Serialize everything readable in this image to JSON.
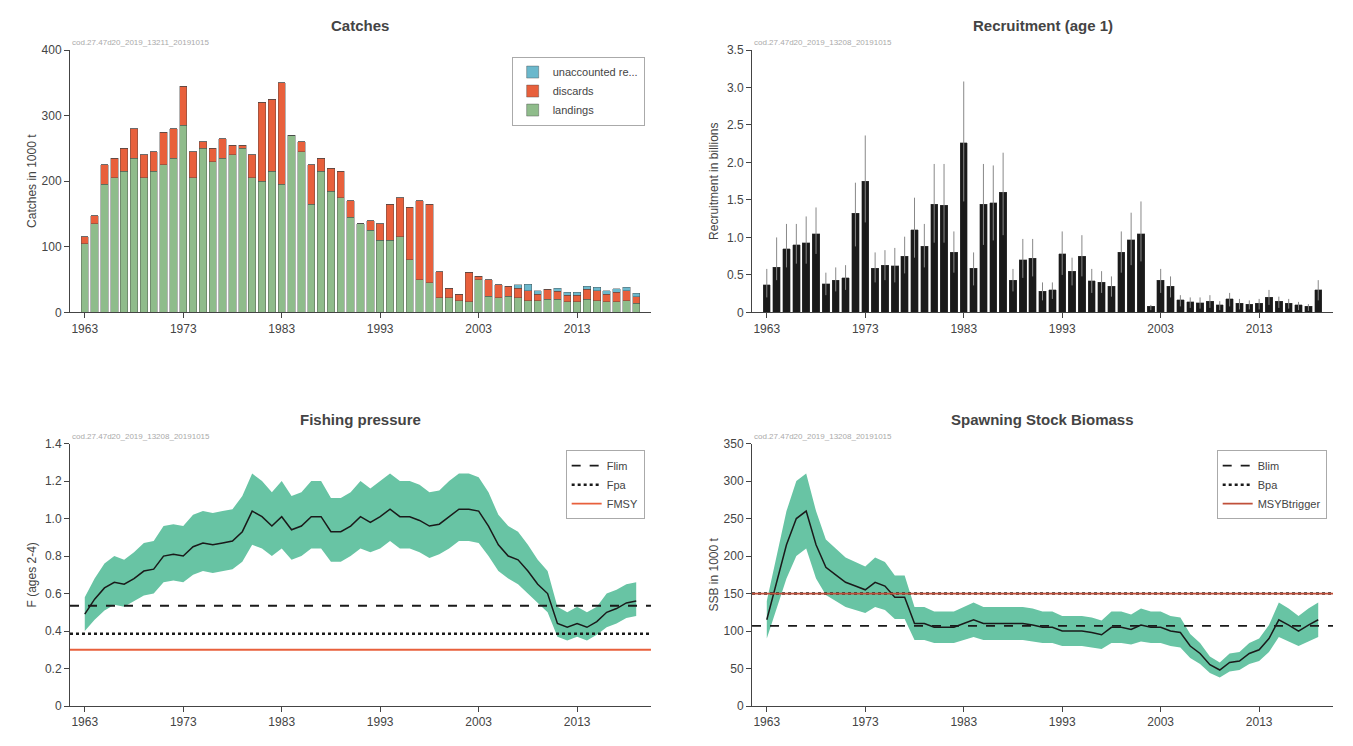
{
  "chart_data": [
    {
      "type": "bar",
      "title": "Catches",
      "subtitle": "cod.27.47d20_2019_13211_20191015",
      "ylabel": "Catches in 1000 t",
      "stacked": true,
      "grid": false,
      "legend": "upper right",
      "x": [
        1963,
        1964,
        1965,
        1966,
        1967,
        1968,
        1969,
        1970,
        1971,
        1972,
        1973,
        1974,
        1975,
        1976,
        1977,
        1978,
        1979,
        1980,
        1981,
        1982,
        1983,
        1984,
        1985,
        1986,
        1987,
        1988,
        1989,
        1990,
        1991,
        1992,
        1993,
        1994,
        1995,
        1996,
        1997,
        1998,
        1999,
        2000,
        2001,
        2002,
        2003,
        2004,
        2005,
        2006,
        2007,
        2008,
        2009,
        2010,
        2011,
        2012,
        2013,
        2014,
        2015,
        2016,
        2017,
        2018,
        2019
      ],
      "xlim": [
        1961.5,
        2020.5
      ],
      "xticks": [
        1963,
        1973,
        1983,
        1993,
        2003,
        2013
      ],
      "ylim": [
        0,
        400
      ],
      "yticks": [
        0,
        100,
        200,
        300,
        400
      ],
      "series": [
        {
          "name": "landings",
          "color": "#8fbc8b",
          "values": [
            105,
            135,
            195,
            205,
            215,
            235,
            205,
            215,
            225,
            235,
            285,
            205,
            250,
            230,
            235,
            240,
            250,
            205,
            200,
            215,
            195,
            270,
            245,
            165,
            215,
            185,
            175,
            145,
            135,
            125,
            110,
            110,
            115,
            80,
            50,
            45,
            22,
            22,
            18,
            16,
            50,
            25,
            22,
            25,
            22,
            18,
            18,
            20,
            20,
            16,
            16,
            20,
            18,
            16,
            16,
            18,
            14
          ]
        },
        {
          "name": "discards",
          "color": "#e8603c",
          "values": [
            10,
            12,
            30,
            30,
            35,
            45,
            35,
            30,
            50,
            45,
            60,
            40,
            10,
            20,
            30,
            15,
            5,
            35,
            120,
            110,
            155,
            0,
            15,
            60,
            20,
            35,
            40,
            25,
            0,
            15,
            25,
            55,
            60,
            80,
            120,
            120,
            40,
            15,
            10,
            45,
            5,
            25,
            20,
            15,
            15,
            15,
            10,
            15,
            12,
            10,
            10,
            15,
            15,
            12,
            15,
            15,
            10
          ]
        },
        {
          "name": "unaccounted re...",
          "color": "#6bb8cc",
          "values": [
            0,
            0,
            0,
            0,
            0,
            0,
            0,
            0,
            0,
            0,
            0,
            0,
            0,
            0,
            0,
            0,
            0,
            0,
            0,
            0,
            0,
            0,
            0,
            0,
            0,
            0,
            0,
            0,
            0,
            0,
            0,
            0,
            0,
            0,
            0,
            0,
            0,
            0,
            0,
            0,
            0,
            0,
            0,
            0,
            5,
            10,
            5,
            0,
            5,
            5,
            5,
            5,
            5,
            5,
            5,
            5,
            5
          ]
        }
      ]
    },
    {
      "type": "bar",
      "title": "Recruitment (age 1)",
      "subtitle": "cod.27.47d20_2019_13208_20191015",
      "ylabel": "Recruitment in billions",
      "grid": false,
      "x": [
        1963,
        1964,
        1965,
        1966,
        1967,
        1968,
        1969,
        1970,
        1971,
        1972,
        1973,
        1974,
        1975,
        1976,
        1977,
        1978,
        1979,
        1980,
        1981,
        1982,
        1983,
        1984,
        1985,
        1986,
        1987,
        1988,
        1989,
        1990,
        1991,
        1992,
        1993,
        1994,
        1995,
        1996,
        1997,
        1998,
        1999,
        2000,
        2001,
        2002,
        2003,
        2004,
        2005,
        2006,
        2007,
        2008,
        2009,
        2010,
        2011,
        2012,
        2013,
        2014,
        2015,
        2016,
        2017,
        2018,
        2019
      ],
      "xlim": [
        1961.5,
        2020.5
      ],
      "xticks": [
        1963,
        1973,
        1983,
        1993,
        2003,
        2013
      ],
      "ylim": [
        0,
        3.5
      ],
      "yticks": [
        0,
        0.5,
        {
          "value": 1,
          "label": "1.0"
        },
        1.5,
        {
          "value": 2,
          "label": "2.0"
        },
        2.5,
        {
          "value": 3,
          "label": "3.0"
        },
        3.5
      ],
      "series": [
        {
          "color": "#1a1a1a",
          "values": [
            0.37,
            0.6,
            0.85,
            0.9,
            0.93,
            1.05,
            0.38,
            0.43,
            0.46,
            1.32,
            1.75,
            0.59,
            0.63,
            0.62,
            0.75,
            1.1,
            0.88,
            1.44,
            1.43,
            0.8,
            2.26,
            0.59,
            1.44,
            1.46,
            1.6,
            0.43,
            0.7,
            0.72,
            0.28,
            0.3,
            0.78,
            0.55,
            0.75,
            0.42,
            0.4,
            0.35,
            0.8,
            0.97,
            1.05,
            0.08,
            0.43,
            0.35,
            0.17,
            0.14,
            0.13,
            0.15,
            0.1,
            0.18,
            0.12,
            0.11,
            0.12,
            0.2,
            0.15,
            0.12,
            0.1,
            0.08,
            0.3
          ],
          "low": [
            0.2,
            0.43,
            0.6,
            0.65,
            0.65,
            0.78,
            0.23,
            0.28,
            0.3,
            0.88,
            1.2,
            0.4,
            0.43,
            0.4,
            0.52,
            0.73,
            0.6,
            0.93,
            0.93,
            0.53,
            1.48,
            0.36,
            0.9,
            0.96,
            1.03,
            0.28,
            0.46,
            0.48,
            0.16,
            0.18,
            0.5,
            0.36,
            0.48,
            0.26,
            0.26,
            0.21,
            0.53,
            0.63,
            0.68,
            0.03,
            0.26,
            0.2,
            0.08,
            0.06,
            0.05,
            0.06,
            0.03,
            0.08,
            0.04,
            0.04,
            0.04,
            0.1,
            0.06,
            0.05,
            0.03,
            0.02,
            0.16
          ],
          "high": [
            0.58,
            1.0,
            1.18,
            1.18,
            1.28,
            1.4,
            0.53,
            0.6,
            0.63,
            1.73,
            2.36,
            0.8,
            0.83,
            0.86,
            1.01,
            1.53,
            1.18,
            1.98,
            1.98,
            1.08,
            3.08,
            0.8,
            1.98,
            1.96,
            2.13,
            0.58,
            0.98,
            0.98,
            0.4,
            0.4,
            1.08,
            0.73,
            1.03,
            0.58,
            0.55,
            0.48,
            1.08,
            1.33,
            1.48,
            0.1,
            0.58,
            0.48,
            0.23,
            0.2,
            0.2,
            0.23,
            0.15,
            0.26,
            0.18,
            0.16,
            0.18,
            0.3,
            0.21,
            0.18,
            0.14,
            0.11,
            0.43
          ]
        }
      ]
    },
    {
      "type": "line",
      "title": "Fishing pressure",
      "subtitle": "cod.27.47d20_2019_13208_20191015",
      "ylabel": "F (ages 2-4)",
      "grid": false,
      "legend": "upper right",
      "x": [
        1963,
        1964,
        1965,
        1966,
        1967,
        1968,
        1969,
        1970,
        1971,
        1972,
        1973,
        1974,
        1975,
        1976,
        1977,
        1978,
        1979,
        1980,
        1981,
        1982,
        1983,
        1984,
        1985,
        1986,
        1987,
        1988,
        1989,
        1990,
        1991,
        1992,
        1993,
        1994,
        1995,
        1996,
        1997,
        1998,
        1999,
        2000,
        2001,
        2002,
        2003,
        2004,
        2005,
        2006,
        2007,
        2008,
        2009,
        2010,
        2011,
        2012,
        2013,
        2014,
        2015,
        2016,
        2017,
        2018,
        2019
      ],
      "xlim": [
        1961.5,
        2020.5
      ],
      "xticks": [
        1963,
        1973,
        1983,
        1993,
        2003,
        2013
      ],
      "ylim": [
        0,
        1.4
      ],
      "yticks": [
        0,
        0.2,
        0.4,
        0.6,
        0.8,
        {
          "value": 1,
          "label": "1.0"
        },
        1.2,
        1.4
      ],
      "series": [
        {
          "type": "band",
          "color": "#68c4a4",
          "low": [
            0.4,
            0.46,
            0.51,
            0.54,
            0.53,
            0.56,
            0.59,
            0.6,
            0.66,
            0.67,
            0.66,
            0.7,
            0.72,
            0.71,
            0.72,
            0.73,
            0.77,
            0.86,
            0.84,
            0.8,
            0.84,
            0.78,
            0.8,
            0.84,
            0.84,
            0.77,
            0.77,
            0.8,
            0.84,
            0.82,
            0.84,
            0.88,
            0.84,
            0.84,
            0.82,
            0.79,
            0.81,
            0.84,
            0.88,
            0.88,
            0.87,
            0.8,
            0.72,
            0.68,
            0.65,
            0.6,
            0.55,
            0.5,
            0.37,
            0.35,
            0.37,
            0.35,
            0.38,
            0.42,
            0.44,
            0.47,
            0.48
          ],
          "high": [
            0.58,
            0.68,
            0.76,
            0.8,
            0.78,
            0.82,
            0.87,
            0.88,
            0.96,
            0.97,
            0.96,
            1.02,
            1.04,
            1.03,
            1.04,
            1.05,
            1.12,
            1.24,
            1.2,
            1.14,
            1.2,
            1.12,
            1.14,
            1.2,
            1.2,
            1.11,
            1.11,
            1.14,
            1.2,
            1.16,
            1.2,
            1.24,
            1.2,
            1.2,
            1.18,
            1.14,
            1.15,
            1.2,
            1.24,
            1.24,
            1.22,
            1.14,
            1.02,
            0.96,
            0.93,
            0.86,
            0.78,
            0.72,
            0.53,
            0.5,
            0.53,
            0.5,
            0.53,
            0.6,
            0.62,
            0.65,
            0.66
          ]
        },
        {
          "type": "line",
          "color": "#1a1a1a",
          "values": [
            0.49,
            0.57,
            0.63,
            0.66,
            0.65,
            0.68,
            0.72,
            0.73,
            0.8,
            0.81,
            0.8,
            0.85,
            0.87,
            0.86,
            0.87,
            0.88,
            0.93,
            1.04,
            1.01,
            0.96,
            1.01,
            0.94,
            0.96,
            1.01,
            1.01,
            0.93,
            0.93,
            0.96,
            1.01,
            0.98,
            1.01,
            1.05,
            1.01,
            1.01,
            0.99,
            0.96,
            0.97,
            1.01,
            1.05,
            1.05,
            1.04,
            0.96,
            0.86,
            0.8,
            0.78,
            0.72,
            0.65,
            0.6,
            0.44,
            0.42,
            0.44,
            0.42,
            0.45,
            0.5,
            0.52,
            0.55,
            0.56
          ]
        },
        {
          "type": "hline",
          "name": "Flim",
          "value": 0.535,
          "color": "#1a1a1a",
          "line_style": "dashed"
        },
        {
          "type": "hline",
          "name": "Fpa",
          "value": 0.385,
          "color": "#1a1a1a",
          "line_style": "dotted"
        },
        {
          "type": "hline",
          "name": "FMSY",
          "value": 0.3,
          "color": "#e8603c",
          "line_style": "solid"
        }
      ]
    },
    {
      "type": "line",
      "title": "Spawning Stock Biomass",
      "subtitle": "cod.27.47d20_2019_13208_20191015",
      "ylabel": "SSB in 1000 t",
      "grid": false,
      "legend": "upper right",
      "x": [
        1963,
        1964,
        1965,
        1966,
        1967,
        1968,
        1969,
        1970,
        1971,
        1972,
        1973,
        1974,
        1975,
        1976,
        1977,
        1978,
        1979,
        1980,
        1981,
        1982,
        1983,
        1984,
        1985,
        1986,
        1987,
        1988,
        1989,
        1990,
        1991,
        1992,
        1993,
        1994,
        1995,
        1996,
        1997,
        1998,
        1999,
        2000,
        2001,
        2002,
        2003,
        2004,
        2005,
        2006,
        2007,
        2008,
        2009,
        2010,
        2011,
        2012,
        2013,
        2014,
        2015,
        2016,
        2017,
        2018,
        2019
      ],
      "xlim": [
        1961.5,
        2020.5
      ],
      "xticks": [
        1963,
        1973,
        1983,
        1993,
        2003,
        2013
      ],
      "ylim": [
        0,
        350
      ],
      "yticks": [
        0,
        50,
        100,
        150,
        200,
        250,
        300,
        350
      ],
      "series": [
        {
          "type": "band",
          "color": "#68c4a4",
          "low": [
            90,
            130,
            170,
            200,
            210,
            170,
            148,
            140,
            132,
            128,
            124,
            132,
            128,
            116,
            116,
            88,
            88,
            84,
            84,
            84,
            88,
            92,
            88,
            88,
            88,
            88,
            88,
            86,
            84,
            84,
            80,
            80,
            80,
            78,
            76,
            84,
            84,
            82,
            86,
            84,
            84,
            80,
            78,
            64,
            56,
            44,
            38,
            46,
            48,
            56,
            60,
            72,
            92,
            86,
            80,
            86,
            92
          ],
          "high": [
            140,
            200,
            260,
            300,
            310,
            260,
            222,
            210,
            198,
            192,
            186,
            198,
            192,
            174,
            174,
            132,
            132,
            126,
            126,
            126,
            132,
            138,
            132,
            132,
            132,
            132,
            132,
            130,
            126,
            126,
            120,
            120,
            120,
            118,
            114,
            126,
            126,
            122,
            130,
            126,
            126,
            120,
            118,
            96,
            84,
            66,
            58,
            70,
            72,
            84,
            90,
            108,
            138,
            130,
            120,
            130,
            138
          ]
        },
        {
          "type": "line",
          "color": "#1a1a1a",
          "values": [
            115,
            165,
            215,
            250,
            260,
            215,
            185,
            175,
            165,
            160,
            155,
            165,
            160,
            145,
            145,
            110,
            110,
            105,
            105,
            105,
            110,
            115,
            110,
            110,
            110,
            110,
            110,
            108,
            105,
            105,
            100,
            100,
            100,
            98,
            95,
            105,
            105,
            102,
            108,
            105,
            105,
            100,
            98,
            80,
            70,
            55,
            48,
            58,
            60,
            70,
            75,
            90,
            115,
            108,
            100,
            108,
            115
          ]
        },
        {
          "type": "hline",
          "name": "Blim",
          "value": 107,
          "color": "#1a1a1a",
          "line_style": "dashed"
        },
        {
          "type": "hline",
          "name": "Bpa",
          "value": 150,
          "color": "#1a1a1a",
          "line_style": "dotted"
        },
        {
          "type": "hline",
          "name": "MSYBtrigger",
          "value": 150,
          "color": "#c0503a",
          "line_style": "solid"
        }
      ]
    }
  ]
}
